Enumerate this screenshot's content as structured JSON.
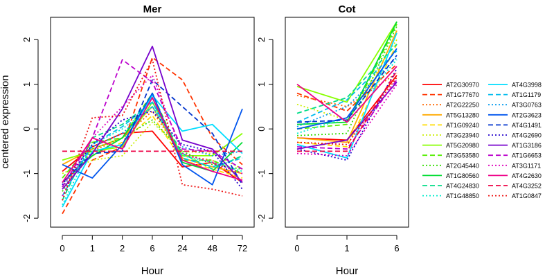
{
  "chart_data": {
    "type": "line",
    "ylabel": "centered expression",
    "ylim": [
      -2.2,
      2.5
    ],
    "yticks": [
      -2,
      -1,
      0,
      1,
      2
    ],
    "panels": [
      {
        "title": "Mer",
        "xlabel": "Hour",
        "x": [
          "0",
          "1",
          "2",
          "6",
          "24",
          "48",
          "72"
        ],
        "series": [
          {
            "name": "AT2G30970",
            "color": "#ff0000",
            "dash": "solid",
            "values": [
              -0.95,
              -0.4,
              -0.1,
              -0.05,
              -0.85,
              -0.75,
              -1.2
            ]
          },
          {
            "name": "AT1G77670",
            "color": "#ff3300",
            "dash": "dashed",
            "values": [
              -1.9,
              -0.7,
              -0.4,
              1.6,
              1.1,
              -0.2,
              -0.8
            ]
          },
          {
            "name": "AT2G22250",
            "color": "#ff6600",
            "dash": "dotted",
            "values": [
              -1.3,
              -0.5,
              -0.2,
              0.4,
              -0.6,
              -0.7,
              -1.2
            ]
          },
          {
            "name": "AT5G13280",
            "color": "#ffaa00",
            "dash": "solid",
            "values": [
              -0.8,
              -0.45,
              -0.2,
              0.5,
              -0.65,
              -0.85,
              -1.0
            ]
          },
          {
            "name": "AT1G09240",
            "color": "#ffdd00",
            "dash": "dashed",
            "values": [
              -1.2,
              -0.6,
              -0.3,
              0.3,
              -0.7,
              -0.9,
              -1.1
            ]
          },
          {
            "name": "AT3G23940",
            "color": "#ccee00",
            "dash": "dotted",
            "values": [
              -1.0,
              -0.7,
              -0.6,
              0.15,
              -0.5,
              -0.55,
              -0.9
            ]
          },
          {
            "name": "AT5G20980",
            "color": "#88ff00",
            "dash": "solid",
            "values": [
              -0.7,
              -0.5,
              -0.4,
              0.6,
              -0.6,
              -0.6,
              -0.1
            ]
          },
          {
            "name": "AT3G53580",
            "color": "#55ee00",
            "dash": "dashed",
            "values": [
              -1.1,
              -0.3,
              -0.2,
              0.8,
              -0.7,
              -0.7,
              -1.0
            ]
          },
          {
            "name": "AT2G45440",
            "color": "#33dd00",
            "dash": "dotted",
            "values": [
              -1.4,
              -0.45,
              -0.2,
              0.2,
              -0.5,
              -0.8,
              -0.9
            ]
          },
          {
            "name": "AT1G80560",
            "color": "#00dd33",
            "dash": "solid",
            "values": [
              -1.2,
              -0.6,
              -0.2,
              0.7,
              -0.75,
              -0.95,
              -0.3
            ]
          },
          {
            "name": "AT4G24830",
            "color": "#00dd88",
            "dash": "dashed",
            "values": [
              -1.6,
              -0.2,
              0.1,
              0.6,
              -0.55,
              -0.9,
              -0.6
            ]
          },
          {
            "name": "AT1G48850",
            "color": "#00eecc",
            "dash": "dotted",
            "values": [
              -1.7,
              -0.35,
              0.0,
              0.5,
              -0.6,
              -0.75,
              -0.95
            ]
          },
          {
            "name": "AT4G3998",
            "color": "#00ddff",
            "dash": "solid",
            "values": [
              -1.75,
              -0.5,
              -0.35,
              0.75,
              -0.05,
              0.1,
              -0.55
            ]
          },
          {
            "name": "AT1G1179",
            "color": "#00bbee",
            "dash": "dashed",
            "values": [
              -1.5,
              -0.35,
              0.05,
              0.6,
              -0.65,
              -0.85,
              -0.65
            ]
          },
          {
            "name": "AT3G0763",
            "color": "#0099ee",
            "dash": "dotted",
            "values": [
              -1.3,
              -0.4,
              -0.1,
              0.5,
              -0.4,
              -0.6,
              -0.5
            ]
          },
          {
            "name": "AT2G3623",
            "color": "#0055ee",
            "dash": "solid",
            "values": [
              -0.8,
              -1.1,
              -0.35,
              0.8,
              -0.8,
              -1.25,
              0.45
            ]
          },
          {
            "name": "AT4G1491",
            "color": "#0033cc",
            "dash": "dashed",
            "values": [
              -1.2,
              -0.55,
              -0.5,
              1.1,
              0.5,
              -0.1,
              -1.25
            ]
          },
          {
            "name": "AT4G2690",
            "color": "#2200cc",
            "dash": "dotted",
            "values": [
              -1.25,
              -0.35,
              0.2,
              0.4,
              -0.35,
              -0.5,
              -1.35
            ]
          },
          {
            "name": "AT1G3186",
            "color": "#7700cc",
            "dash": "solid",
            "values": [
              -1.35,
              -0.55,
              0.45,
              1.85,
              -0.25,
              -0.45,
              -1.2
            ]
          },
          {
            "name": "AT1G6653",
            "color": "#bb00cc",
            "dash": "dashed",
            "values": [
              -1.3,
              -0.2,
              1.55,
              1.05,
              -0.45,
              -0.5,
              -0.9
            ]
          },
          {
            "name": "AT3G1171",
            "color": "#dd00bb",
            "dash": "dotted",
            "values": [
              -1.5,
              -0.2,
              0.5,
              1.2,
              -0.55,
              -0.75,
              -1.0
            ]
          },
          {
            "name": "AT4G2630",
            "color": "#ee0088",
            "dash": "solid",
            "values": [
              -1.2,
              -0.2,
              -0.45,
              0.7,
              -0.7,
              -0.95,
              -1.15
            ]
          },
          {
            "name": "AT4G3252",
            "color": "#ee0044",
            "dash": "dashed",
            "values": [
              -0.5,
              -0.5,
              -0.5,
              -0.5,
              -0.5,
              -0.5,
              -0.5
            ]
          },
          {
            "name": "AT1G0847",
            "color": "#ee1111",
            "dash": "dotted",
            "values": [
              -1.6,
              0.25,
              0.3,
              1.55,
              -1.25,
              -1.35,
              -1.5
            ]
          }
        ]
      },
      {
        "title": "Cot",
        "xlabel": "Hour",
        "x": [
          "0",
          "1",
          "6"
        ],
        "series": [
          {
            "name": "AT2G30970",
            "color": "#ff0000",
            "dash": "solid",
            "values": [
              -0.2,
              -0.25,
              1.2
            ]
          },
          {
            "name": "AT1G77670",
            "color": "#ff3300",
            "dash": "dashed",
            "values": [
              0.8,
              0.4,
              1.45
            ]
          },
          {
            "name": "AT2G22250",
            "color": "#ff6600",
            "dash": "dotted",
            "values": [
              0.75,
              0.5,
              1.25
            ]
          },
          {
            "name": "AT5G13280",
            "color": "#ffaa00",
            "dash": "solid",
            "values": [
              -0.2,
              -0.3,
              2.2
            ]
          },
          {
            "name": "AT1G09240",
            "color": "#ffdd00",
            "dash": "dashed",
            "values": [
              -0.3,
              -0.4,
              1.9
            ]
          },
          {
            "name": "AT3G23940",
            "color": "#ccee00",
            "dash": "dotted",
            "values": [
              0.55,
              0.2,
              2.0
            ]
          },
          {
            "name": "AT5G20980",
            "color": "#88ff00",
            "dash": "solid",
            "values": [
              0.95,
              0.6,
              2.4
            ]
          },
          {
            "name": "AT3G53580",
            "color": "#55ee00",
            "dash": "dashed",
            "values": [
              0.0,
              0.1,
              2.35
            ]
          },
          {
            "name": "AT2G45440",
            "color": "#33dd00",
            "dash": "dotted",
            "values": [
              -0.15,
              -0.1,
              2.3
            ]
          },
          {
            "name": "AT1G80560",
            "color": "#00dd33",
            "dash": "solid",
            "values": [
              0.1,
              0.15,
              2.4
            ]
          },
          {
            "name": "AT4G24830",
            "color": "#00dd88",
            "dash": "dashed",
            "values": [
              0.35,
              0.7,
              1.9
            ]
          },
          {
            "name": "AT1G48850",
            "color": "#00eecc",
            "dash": "dotted",
            "values": [
              -0.1,
              0.25,
              1.55
            ]
          },
          {
            "name": "AT4G3998",
            "color": "#00ddff",
            "dash": "solid",
            "values": [
              -0.35,
              -0.65,
              2.15
            ]
          },
          {
            "name": "AT1G1179",
            "color": "#00bbee",
            "dash": "dashed",
            "values": [
              0.15,
              0.65,
              1.75
            ]
          },
          {
            "name": "AT3G0763",
            "color": "#0099ee",
            "dash": "dotted",
            "values": [
              0.05,
              0.5,
              1.6
            ]
          },
          {
            "name": "AT2G3623",
            "color": "#0055ee",
            "dash": "solid",
            "values": [
              0.0,
              0.25,
              1.8
            ]
          },
          {
            "name": "AT4G1491",
            "color": "#0033cc",
            "dash": "dashed",
            "values": [
              0.15,
              0.2,
              1.65
            ]
          },
          {
            "name": "AT4G2690",
            "color": "#2200cc",
            "dash": "dotted",
            "values": [
              -0.45,
              -0.7,
              1.35
            ]
          },
          {
            "name": "AT1G3186",
            "color": "#7700cc",
            "dash": "solid",
            "values": [
              -0.45,
              -0.25,
              1.05
            ]
          },
          {
            "name": "AT1G6653",
            "color": "#bb00cc",
            "dash": "dashed",
            "values": [
              -0.4,
              -0.45,
              1.1
            ]
          },
          {
            "name": "AT3G1171",
            "color": "#dd00bb",
            "dash": "dotted",
            "values": [
              -0.55,
              -0.6,
              1.0
            ]
          },
          {
            "name": "AT4G2630",
            "color": "#ee0088",
            "dash": "solid",
            "values": [
              1.0,
              0.15,
              1.4
            ]
          },
          {
            "name": "AT4G3252",
            "color": "#ee0044",
            "dash": "dashed",
            "values": [
              -0.5,
              -0.5,
              1.3
            ]
          },
          {
            "name": "AT1G0847",
            "color": "#ee1111",
            "dash": "dotted",
            "values": [
              -0.3,
              -0.35,
              1.15
            ]
          }
        ]
      }
    ],
    "legend_position": "right"
  }
}
